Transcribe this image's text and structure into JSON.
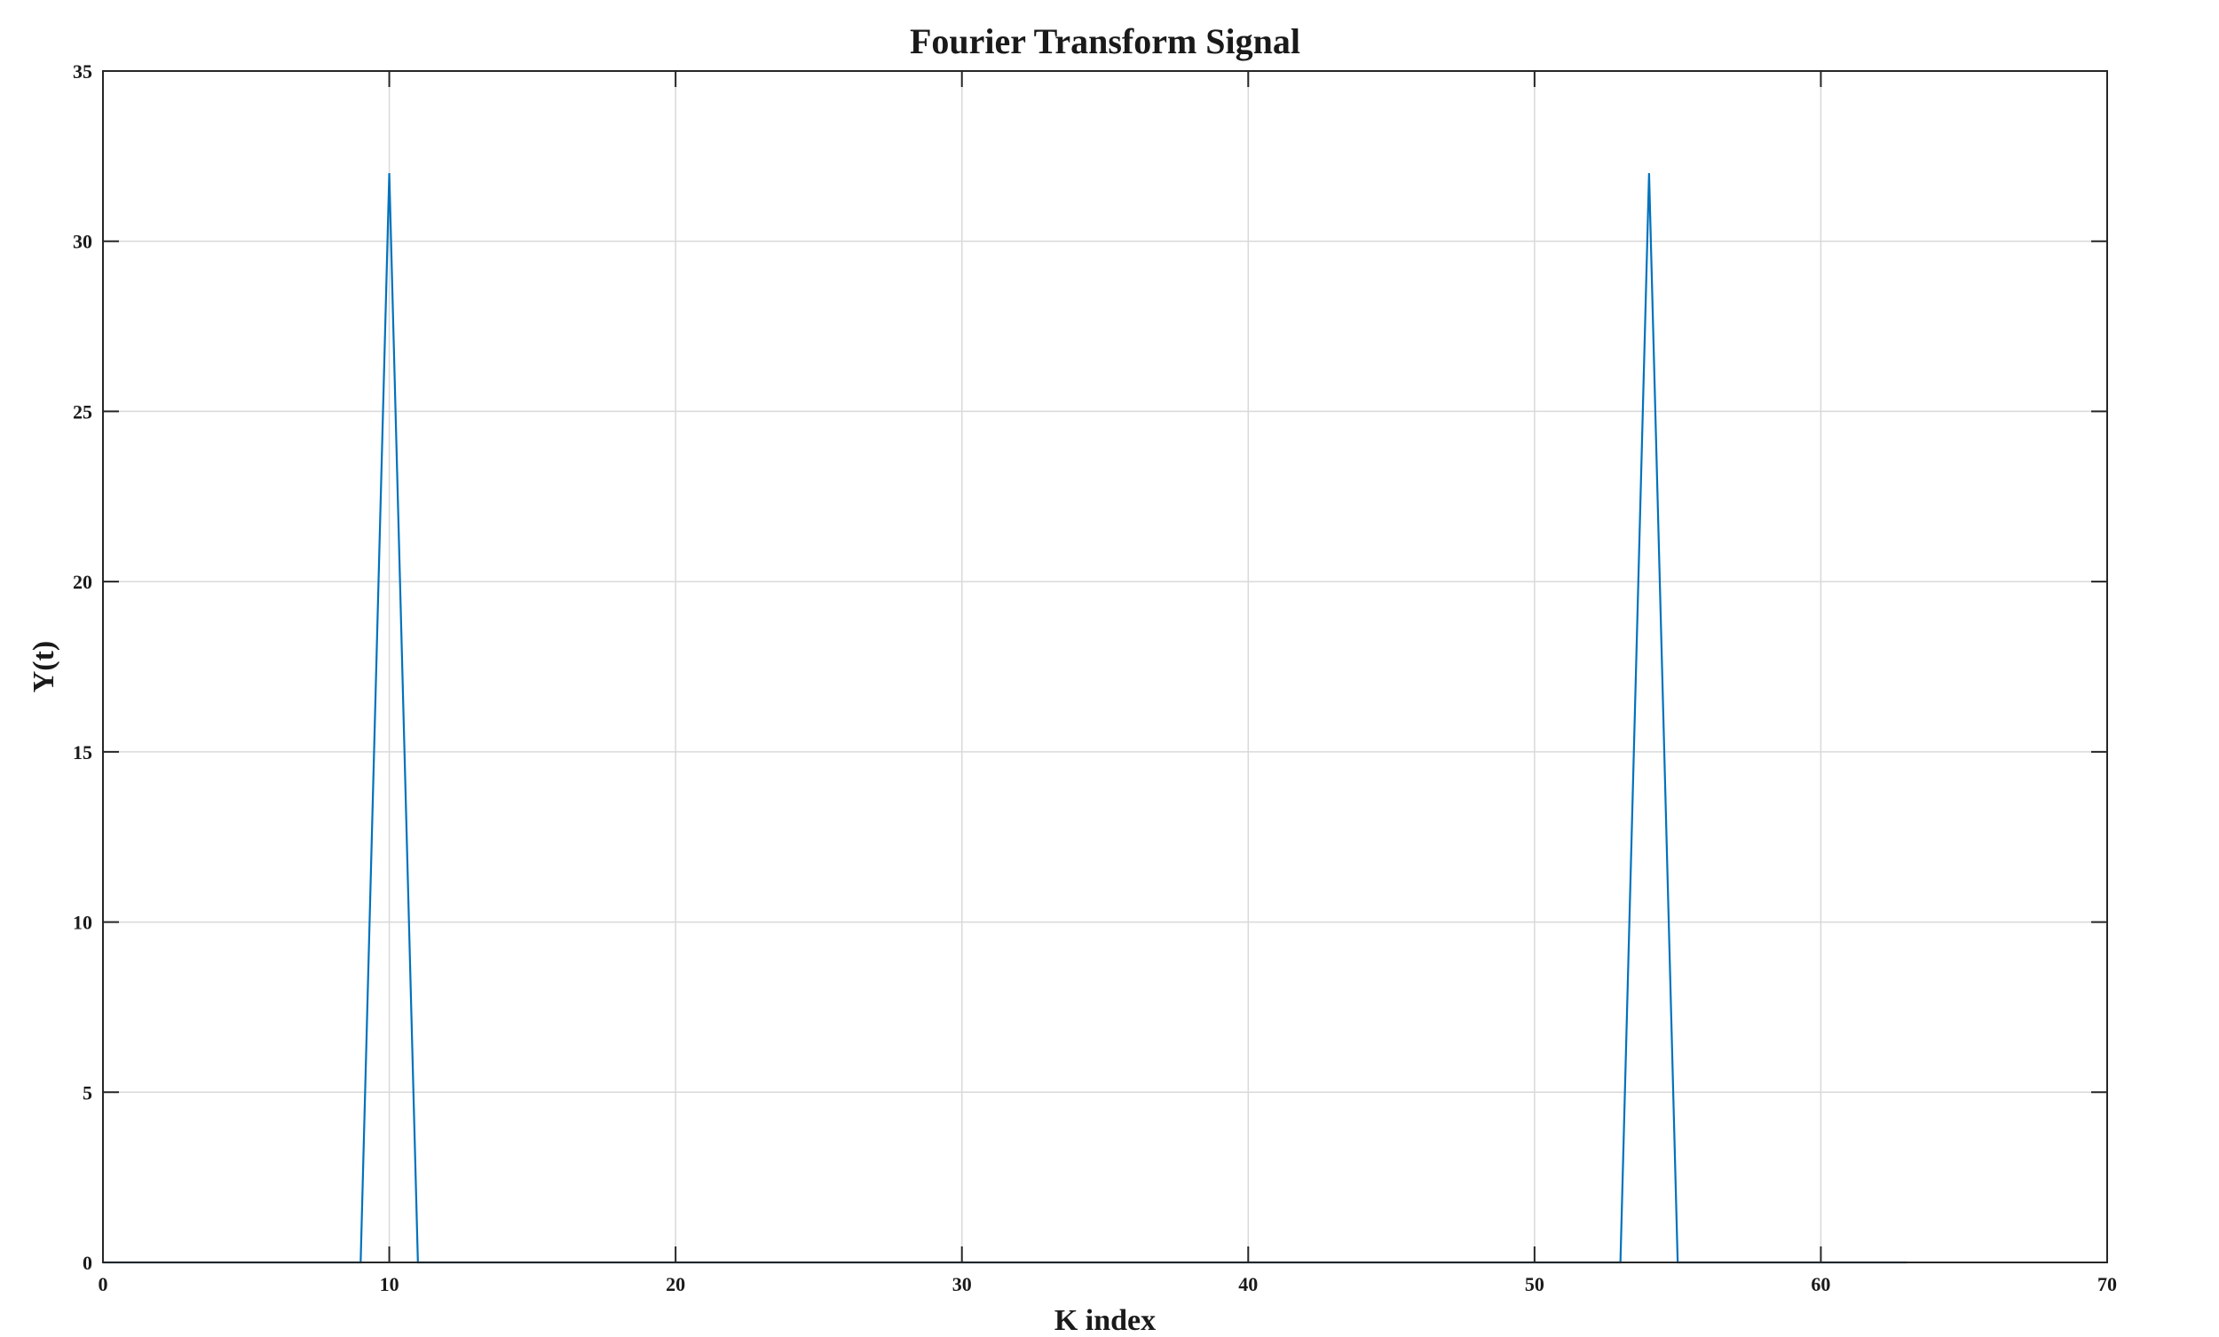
{
  "chart_data": {
    "type": "line",
    "title": "Fourier Transform Signal",
    "xlabel": "K index",
    "ylabel": "Y(t)",
    "xlim": [
      0,
      70
    ],
    "ylim": [
      0,
      35
    ],
    "xticks": [
      0,
      10,
      20,
      30,
      40,
      50,
      60,
      70
    ],
    "yticks": [
      0,
      5,
      10,
      15,
      20,
      25,
      30,
      35
    ],
    "grid": true,
    "legend": "none",
    "series": [
      {
        "name": "Y(t)",
        "color": "#0072BD",
        "x": [
          0,
          9,
          10,
          11,
          53,
          54,
          55,
          63
        ],
        "y": [
          0,
          0,
          32,
          0,
          0,
          32,
          0,
          0
        ]
      }
    ]
  }
}
